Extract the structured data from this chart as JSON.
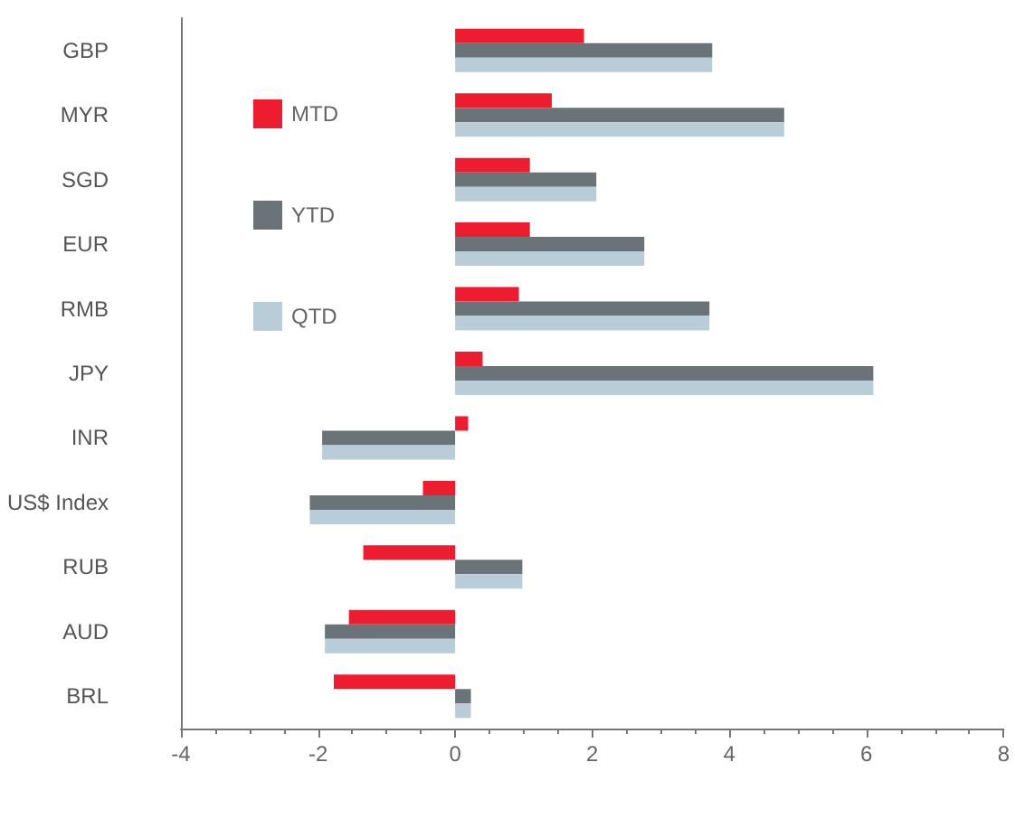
{
  "chart_data": {
    "type": "bar",
    "orientation": "horizontal",
    "categories": [
      "GBP",
      "MYR",
      "SGD",
      "EUR",
      "RMB",
      "JPY",
      "INR",
      "US$ Index",
      "RUB",
      "AUD",
      "BRL"
    ],
    "series": [
      {
        "name": "MTD",
        "color": "#ed1c2e",
        "values": [
          1.88,
          1.41,
          1.09,
          1.09,
          0.93,
          0.4,
          0.19,
          -0.47,
          -1.34,
          -1.55,
          -1.77
        ]
      },
      {
        "name": "YTD",
        "color": "#6a7378",
        "values": [
          3.75,
          4.8,
          2.06,
          2.76,
          3.71,
          6.1,
          -1.94,
          -2.12,
          0.98,
          -1.9,
          0.23
        ]
      },
      {
        "name": "QTD",
        "color": "#b9cdd9",
        "values": [
          3.75,
          4.8,
          2.06,
          2.76,
          3.71,
          6.1,
          -1.94,
          -2.12,
          0.98,
          -1.9,
          0.23
        ]
      }
    ],
    "xlim": [
      -4,
      8
    ],
    "xticks": [
      -4,
      -2,
      0,
      2,
      4,
      6,
      8
    ],
    "grid": false,
    "legend": "top left"
  }
}
